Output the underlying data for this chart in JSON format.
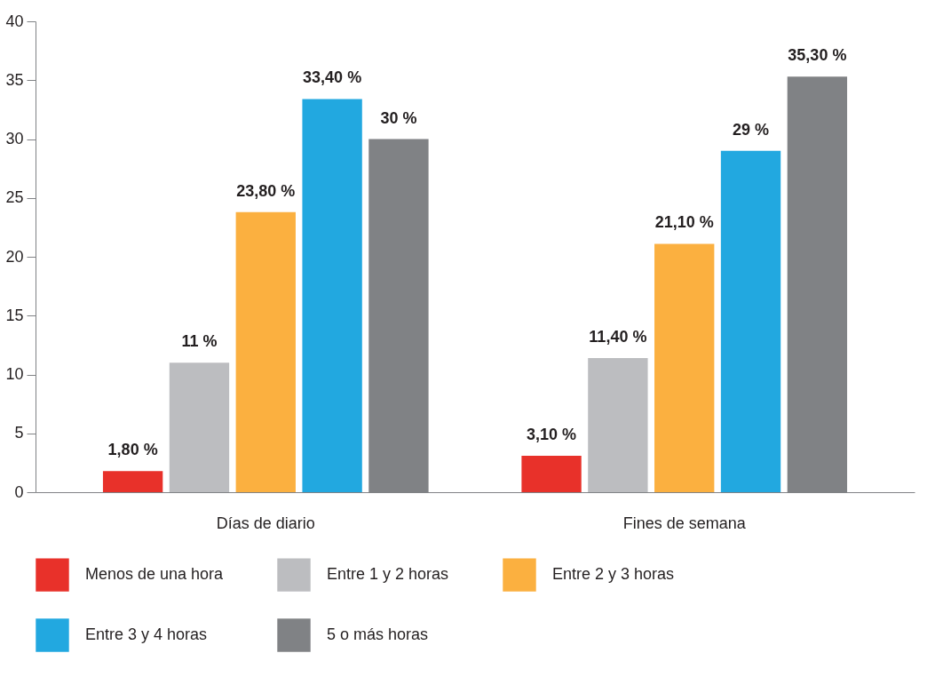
{
  "chart_data": {
    "type": "bar",
    "categories": [
      "Días de diario",
      "Fines de semana"
    ],
    "series": [
      {
        "name": "Menos de una hora",
        "color": "#e8312a",
        "values": [
          1.8,
          3.1
        ],
        "value_labels": [
          "1,80 %",
          "3,10 %"
        ]
      },
      {
        "name": "Entre 1 y 2 horas",
        "color": "#bcbdc0",
        "values": [
          11,
          11.4
        ],
        "value_labels": [
          "11 %",
          "11,40 %"
        ]
      },
      {
        "name": "Entre 2 y 3 horas",
        "color": "#fbb040",
        "values": [
          23.8,
          21.1
        ],
        "value_labels": [
          "23,80 %",
          "21,10 %"
        ]
      },
      {
        "name": "Entre 3 y 4 horas",
        "color": "#22a8e0",
        "values": [
          33.4,
          29
        ],
        "value_labels": [
          "33,40 %",
          "29 %"
        ]
      },
      {
        "name": "5 o más horas",
        "color": "#808285",
        "values": [
          30,
          35.3
        ],
        "value_labels": [
          "30 %",
          "35,30 %"
        ]
      }
    ],
    "ylim": [
      0,
      40
    ],
    "yticks": [
      0,
      5,
      10,
      15,
      20,
      25,
      30,
      35,
      40
    ],
    "grid": false,
    "legend": "bottom"
  }
}
